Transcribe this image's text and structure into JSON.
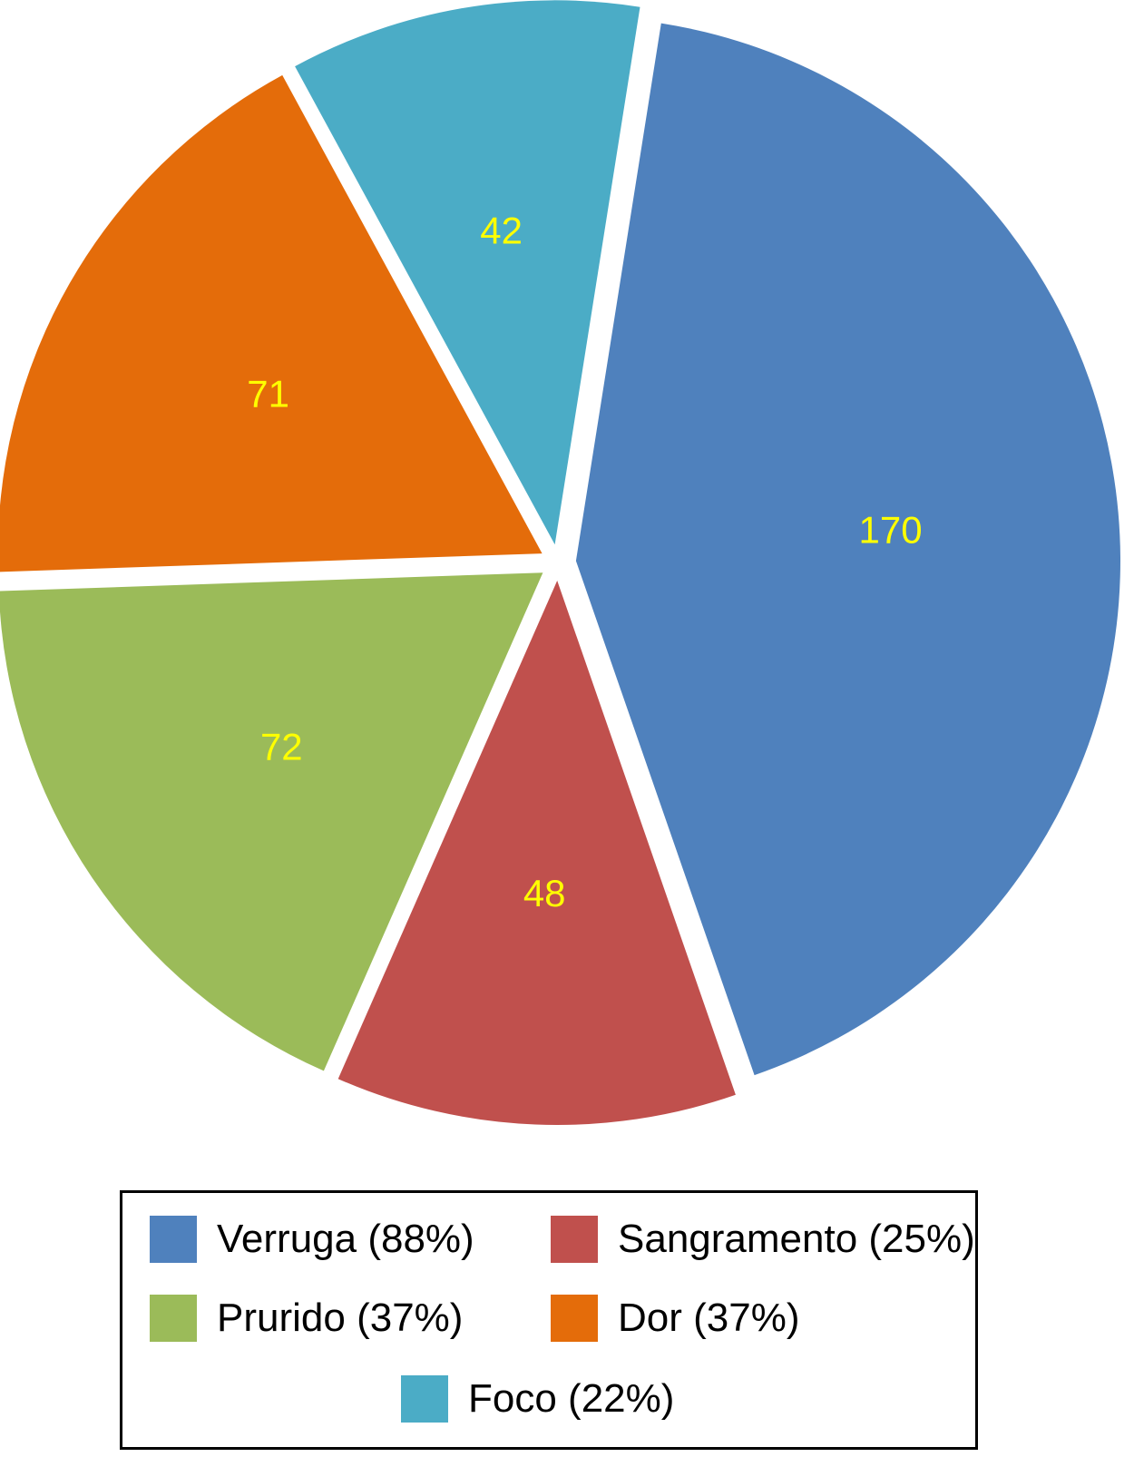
{
  "chart_data": {
    "type": "pie",
    "title": "",
    "exploded": true,
    "label_color": "#ffff00",
    "legend_position": "bottom",
    "slices": [
      {
        "key": "verruga",
        "value": 170,
        "label": "170",
        "legend": "Verruga (88%)",
        "color": "#4f81bd"
      },
      {
        "key": "sangramento",
        "value": 48,
        "label": "48",
        "legend": "Sangramento (25%)",
        "color": "#c0504d"
      },
      {
        "key": "prurido",
        "value": 72,
        "label": "72",
        "legend": "Prurido (37%)",
        "color": "#9bbb59"
      },
      {
        "key": "dor",
        "value": 71,
        "label": "71",
        "legend": "Dor (37%)",
        "color": "#e46c0a"
      },
      {
        "key": "foco",
        "value": 42,
        "label": "42",
        "legend": "Foco (22%)",
        "color": "#4bacc6"
      }
    ]
  }
}
